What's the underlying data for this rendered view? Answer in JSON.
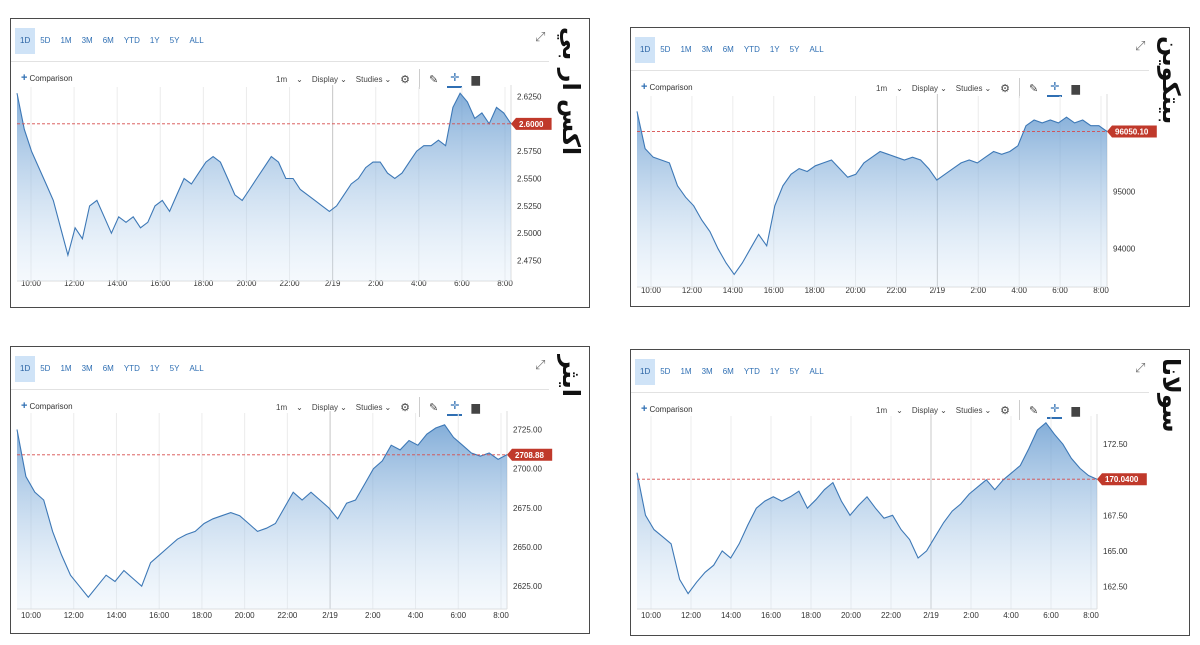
{
  "panels": [
    {
      "title": "اكس ار بي",
      "ranges": [
        "1D",
        "5D",
        "1M",
        "3M",
        "6M",
        "YTD",
        "1Y",
        "5Y",
        "ALL"
      ],
      "active_range": "1D",
      "comparison_label": "Comparison",
      "toolbar": {
        "interval": "1m",
        "display": "Display",
        "studies": "Studies"
      },
      "price_label": "2.6000",
      "chart_data": {
        "type": "area",
        "x_ticks": [
          "10:00",
          "12:00",
          "14:00",
          "16:00",
          "18:00",
          "20:00",
          "22:00",
          "2/19",
          "2:00",
          "4:00",
          "6:00",
          "8:00"
        ],
        "y_ticks": [
          "2.6250",
          "2.6000",
          "2.5750",
          "2.5500",
          "2.5250",
          "2.5000",
          "2.4750"
        ],
        "ylim": [
          2.46,
          2.63
        ],
        "current_value": 2.6,
        "series": [
          {
            "values": [
              2.628,
              2.595,
              2.575,
              2.56,
              2.545,
              2.53,
              2.505,
              2.48,
              2.505,
              2.495,
              2.525,
              2.53,
              2.515,
              2.5,
              2.515,
              2.51,
              2.515,
              2.505,
              2.51,
              2.525,
              2.53,
              2.52,
              2.535,
              2.55,
              2.545,
              2.555,
              2.565,
              2.57,
              2.565,
              2.55,
              2.535,
              2.53,
              2.54,
              2.55,
              2.56,
              2.57,
              2.565,
              2.55,
              2.55,
              2.54,
              2.535,
              2.53,
              2.525,
              2.52,
              2.525,
              2.535,
              2.545,
              2.55,
              2.56,
              2.565,
              2.565,
              2.555,
              2.55,
              2.555,
              2.565,
              2.575,
              2.58,
              2.58,
              2.585,
              2.58,
              2.615,
              2.628,
              2.62,
              2.605,
              2.61,
              2.6,
              2.615,
              2.61,
              2.6
            ]
          }
        ]
      }
    },
    {
      "title": "بيتكوين",
      "ranges": [
        "1D",
        "5D",
        "1M",
        "3M",
        "6M",
        "YTD",
        "1Y",
        "5Y",
        "ALL"
      ],
      "active_range": "1D",
      "comparison_label": "Comparison",
      "toolbar": {
        "interval": "1m",
        "display": "Display",
        "studies": "Studies"
      },
      "price_label": "96050.10",
      "chart_data": {
        "type": "area",
        "x_ticks": [
          "10:00",
          "12:00",
          "14:00",
          "16:00",
          "18:00",
          "20:00",
          "22:00",
          "2/19",
          "2:00",
          "4:00",
          "6:00",
          "8:00"
        ],
        "y_ticks": [
          "95000",
          "94000"
        ],
        "ylim": [
          93400,
          96600
        ],
        "current_value": 96050.1,
        "series": [
          {
            "values": [
              96400,
              95750,
              95600,
              95550,
              95500,
              95100,
              94900,
              94750,
              94500,
              94300,
              94000,
              93750,
              93550,
              93750,
              94000,
              94250,
              94050,
              94750,
              95100,
              95300,
              95400,
              95350,
              95450,
              95500,
              95550,
              95400,
              95250,
              95300,
              95500,
              95600,
              95700,
              95650,
              95600,
              95550,
              95600,
              95550,
              95400,
              95200,
              95300,
              95400,
              95500,
              95550,
              95500,
              95600,
              95700,
              95650,
              95700,
              95800,
              96150,
              96250,
              96200,
              96250,
              96200,
              96300,
              96200,
              96250,
              96150,
              96150,
              96050
            ]
          }
        ]
      }
    },
    {
      "title": "ايثر",
      "ranges": [
        "1D",
        "5D",
        "1M",
        "3M",
        "6M",
        "YTD",
        "1Y",
        "5Y",
        "ALL"
      ],
      "active_range": "1D",
      "comparison_label": "Comparison",
      "toolbar": {
        "interval": "1m",
        "display": "Display",
        "studies": "Studies"
      },
      "price_label": "2708.88",
      "chart_data": {
        "type": "area",
        "x_ticks": [
          "10:00",
          "12:00",
          "14:00",
          "16:00",
          "18:00",
          "20:00",
          "22:00",
          "2/19",
          "2:00",
          "4:00",
          "6:00",
          "8:00"
        ],
        "y_ticks": [
          "2725.00",
          "2700.00",
          "2675.00",
          "2650.00",
          "2625.00"
        ],
        "ylim": [
          2613,
          2733
        ],
        "current_value": 2708.88,
        "series": [
          {
            "values": [
              2725,
              2695,
              2685,
              2680,
              2660,
              2645,
              2632,
              2625,
              2618,
              2625,
              2632,
              2628,
              2635,
              2630,
              2625,
              2640,
              2645,
              2650,
              2655,
              2658,
              2660,
              2665,
              2668,
              2670,
              2672,
              2670,
              2665,
              2660,
              2662,
              2665,
              2675,
              2685,
              2680,
              2685,
              2680,
              2675,
              2668,
              2678,
              2680,
              2690,
              2700,
              2705,
              2715,
              2712,
              2718,
              2715,
              2722,
              2726,
              2728,
              2720,
              2715,
              2710,
              2708,
              2710,
              2706,
              2709
            ]
          }
        ]
      }
    },
    {
      "title": "سولانا",
      "ranges": [
        "1D",
        "5D",
        "1M",
        "3M",
        "6M",
        "YTD",
        "1Y",
        "5Y",
        "ALL"
      ],
      "active_range": "1D",
      "comparison_label": "Comparison",
      "toolbar": {
        "interval": "1m",
        "display": "Display",
        "studies": "Studies"
      },
      "price_label": "170.0400",
      "chart_data": {
        "type": "area",
        "x_ticks": [
          "10:00",
          "12:00",
          "14:00",
          "16:00",
          "18:00",
          "20:00",
          "22:00",
          "2/19",
          "2:00",
          "4:00",
          "6:00",
          "8:00"
        ],
        "y_ticks": [
          "172.50",
          "170.00",
          "167.50",
          "165.00",
          "162.50"
        ],
        "ylim": [
          161.2,
          174.2
        ],
        "current_value": 170.04,
        "series": [
          {
            "values": [
              170.5,
              167.5,
              166.5,
              166,
              165.5,
              163,
              162,
              162.8,
              163.5,
              164,
              165,
              164.5,
              165.5,
              166.8,
              168,
              168.5,
              168.8,
              168.5,
              168.8,
              169.2,
              168,
              168.6,
              169.3,
              169.8,
              168.5,
              167.5,
              168.2,
              168.8,
              168,
              167.3,
              167.5,
              166.5,
              165.8,
              164.5,
              165,
              166,
              167,
              167.8,
              168.3,
              169,
              169.5,
              170,
              169.3,
              170,
              170.5,
              171,
              172.2,
              173.5,
              174,
              173.2,
              172.5,
              171.5,
              170.8,
              170.3,
              170.04
            ]
          }
        ]
      }
    }
  ]
}
